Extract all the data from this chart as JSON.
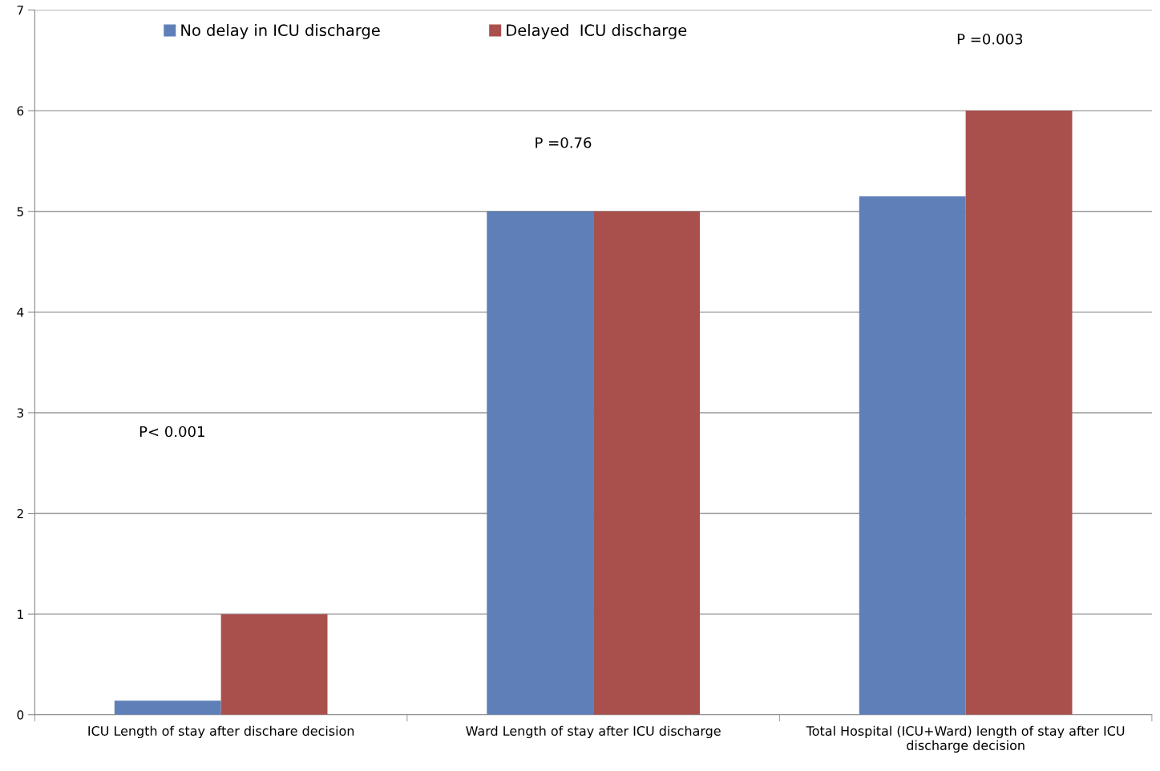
{
  "chart_data": {
    "type": "bar",
    "categories": [
      "ICU Length of stay after dischare decision",
      "Ward Length of stay after ICU discharge",
      "Total Hospital (ICU+Ward) length of stay after ICU discharge decision"
    ],
    "series": [
      {
        "name": "No delay in ICU discharge",
        "color": "#5f7fb9",
        "values": [
          0.14,
          5.0,
          5.15
        ]
      },
      {
        "name": "Delayed  ICU discharge",
        "color": "#a9504d",
        "values": [
          1.0,
          5.0,
          6.0
        ]
      }
    ],
    "ylim": [
      0,
      7
    ],
    "yticks": [
      0,
      1,
      2,
      3,
      4,
      5,
      6,
      7
    ],
    "grid": "y",
    "legend": "top",
    "annotations": [
      "P< 0.001",
      "P =0.76",
      "P =0.003"
    ]
  }
}
